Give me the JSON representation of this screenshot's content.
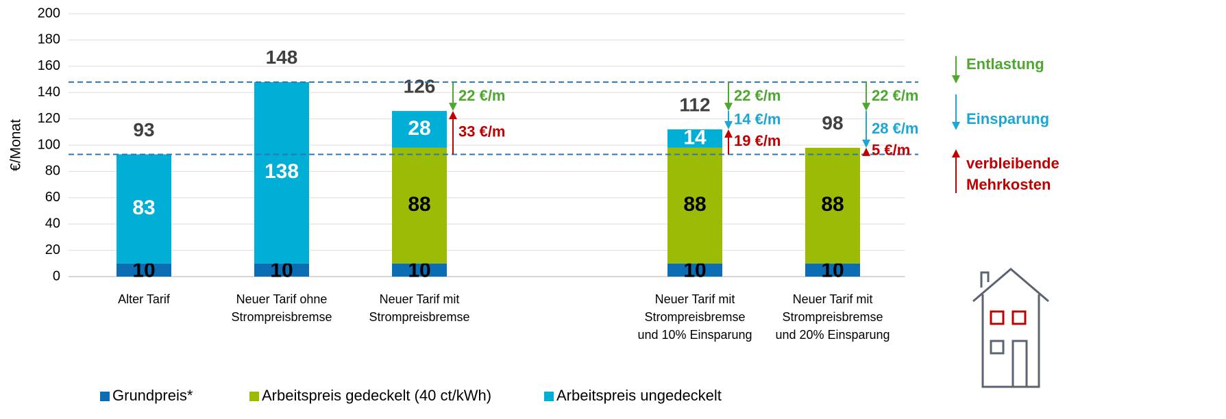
{
  "chart_data": {
    "type": "stacked_bar",
    "y_label": "€/Monat",
    "categories": [
      "Alter Tarif",
      "Neuer Tarif ohne\nStrompreisbremse",
      "Neuer Tarif mit\nStrompreisbremse",
      null,
      "Neuer Tarif mit\nStrompreisbremse\nund 10% Einsparung",
      "Neuer Tarif mit\nStrompreisbremse\nund 20% Einsparung"
    ],
    "series": [
      {
        "name": "Grundpreis*",
        "color": "#0b6db3",
        "label_color": "#000000",
        "values": [
          10,
          10,
          10,
          null,
          10,
          10
        ]
      },
      {
        "name": "Arbeitspreis gedeckelt (40 ct/kWh)",
        "color": "#9bbb07",
        "label_color": "#000000",
        "values": [
          null,
          null,
          88,
          null,
          88,
          88
        ]
      },
      {
        "name": "Arbeitspreis ungedeckelt",
        "color": "#00aed6",
        "label_color": "#ffffff",
        "values": [
          83,
          138,
          28,
          null,
          14,
          null
        ]
      }
    ],
    "totals": [
      93,
      148,
      126,
      null,
      112,
      98
    ],
    "reference_lines": [
      148,
      93
    ],
    "ylim": [
      0,
      200
    ],
    "yticks": [
      0,
      20,
      40,
      60,
      80,
      100,
      120,
      140,
      160,
      180,
      200
    ],
    "grid": true,
    "arrow_key": [
      {
        "label": [
          "Entlastung"
        ],
        "color": "#4ea72e"
      },
      {
        "label": [
          "Einsparung"
        ],
        "color": "#1aa7d6"
      },
      {
        "label": [
          "verbleibende",
          "Mehrkosten"
        ],
        "color": "#c00000"
      }
    ],
    "annotations": [
      {
        "text": "22 €/m",
        "key": 0,
        "category": 2,
        "from": 148,
        "to": 126
      },
      {
        "text": "33 €/m",
        "key": 2,
        "category": 2,
        "from": 93,
        "to": 126
      },
      {
        "text": "22 €/m",
        "key": 0,
        "category": 4,
        "from": 148,
        "to": 126
      },
      {
        "text": "14 €/m",
        "key": 1,
        "category": 4,
        "from": 126,
        "to": 112
      },
      {
        "text": "19 €/m",
        "key": 2,
        "category": 4,
        "from": 93,
        "to": 112
      },
      {
        "text": "22 €/m",
        "key": 0,
        "category": 5,
        "from": 148,
        "to": 126
      },
      {
        "text": "28 €/m",
        "key": 1,
        "category": 5,
        "from": 126,
        "to": 98
      },
      {
        "text": "5 €/m",
        "key": 2,
        "category": 5,
        "from": 93,
        "to": 98
      }
    ]
  }
}
